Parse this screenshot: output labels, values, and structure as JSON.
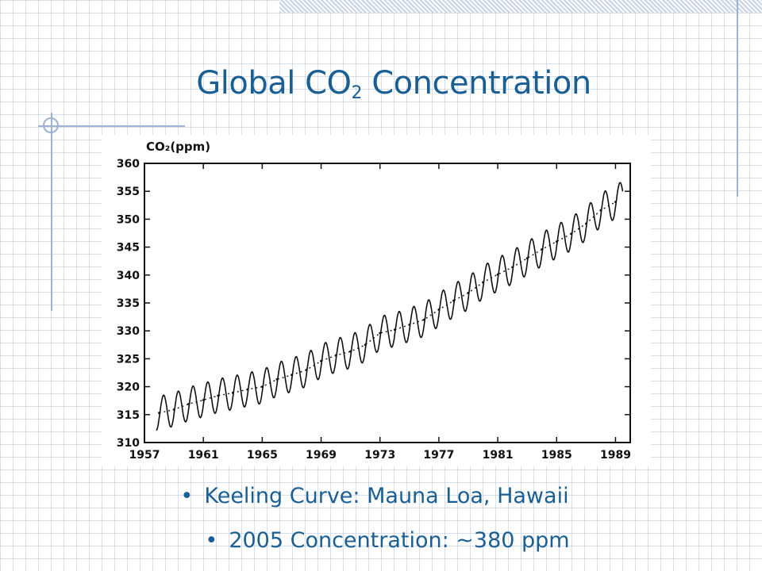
{
  "slide": {
    "title_main": "Global CO",
    "title_sub": "2",
    "title_rest": " Concentration",
    "bullets": [
      {
        "marker": "•",
        "text": "Keeling Curve: Mauna Loa, Hawaii"
      },
      {
        "marker": "•",
        "text": "2005 Concentration: ~380 ppm"
      }
    ]
  },
  "colors": {
    "title": "#1a5f94",
    "grid": "#aab9d2",
    "line": "#111111"
  },
  "chart_data": {
    "type": "line",
    "ylabel": "CO₂(ppm)",
    "ylim": [
      310,
      360
    ],
    "xlim": [
      1957,
      1990
    ],
    "y_ticks": [
      310,
      315,
      320,
      325,
      330,
      335,
      340,
      345,
      350,
      355,
      360
    ],
    "x_ticks": [
      1957,
      1961,
      1965,
      1969,
      1973,
      1977,
      1981,
      1985,
      1989
    ],
    "seasonal_amplitude_ppm": 3,
    "series": [
      {
        "style": "monthly",
        "x": [
          1958,
          1959,
          1960,
          1961,
          1962,
          1963,
          1964,
          1965,
          1966,
          1967,
          1968,
          1969,
          1970,
          1971,
          1972,
          1973,
          1974,
          1975,
          1976,
          1977,
          1978,
          1979,
          1980,
          1981,
          1982,
          1983,
          1984,
          1985,
          1986,
          1987,
          1988,
          1989
        ],
        "values": [
          315.3,
          315.9,
          316.9,
          317.6,
          318.4,
          318.9,
          319.5,
          320.0,
          321.3,
          322.1,
          323.0,
          324.6,
          325.6,
          326.3,
          327.5,
          329.6,
          330.2,
          331.1,
          332.0,
          333.8,
          335.4,
          336.8,
          338.7,
          340.1,
          341.4,
          343.0,
          344.6,
          346.0,
          347.4,
          349.2,
          351.6,
          353.1
        ]
      },
      {
        "style": "annual-mean",
        "x": [
          1958,
          1959,
          1960,
          1961,
          1962,
          1963,
          1964,
          1965,
          1966,
          1967,
          1968,
          1969,
          1970,
          1971,
          1972,
          1973,
          1974,
          1975,
          1976,
          1977,
          1978,
          1979,
          1980,
          1981,
          1982,
          1983,
          1984,
          1985,
          1986,
          1987,
          1988,
          1989
        ],
        "values": [
          315.3,
          315.9,
          316.9,
          317.6,
          318.4,
          318.9,
          319.5,
          320.0,
          321.3,
          322.1,
          323.0,
          324.6,
          325.6,
          326.3,
          327.5,
          329.6,
          330.2,
          331.1,
          332.0,
          333.8,
          335.4,
          336.8,
          338.7,
          340.1,
          341.4,
          343.0,
          344.6,
          346.0,
          347.4,
          349.2,
          351.6,
          353.1
        ]
      }
    ]
  }
}
